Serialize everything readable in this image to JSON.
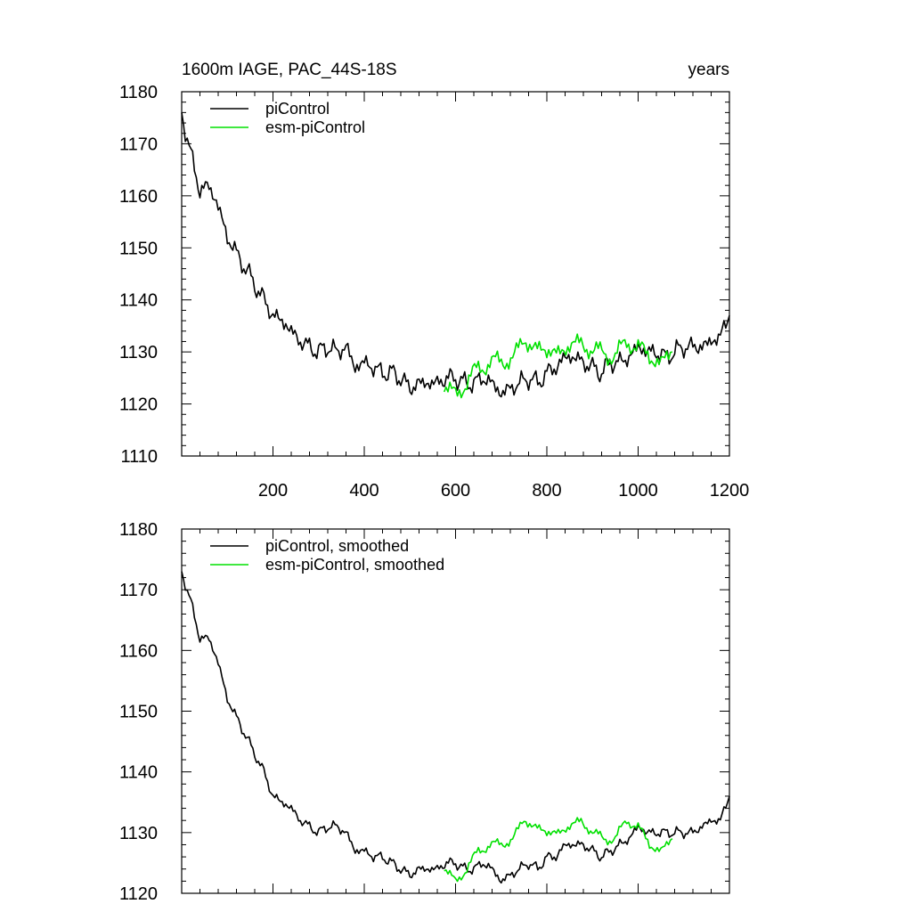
{
  "chart_data": [
    {
      "type": "line",
      "title": "1600m IAGE, PAC_44S-18S",
      "title_right": "years",
      "xlim": [
        0,
        1200
      ],
      "ylim": [
        1110,
        1180
      ],
      "x_ticks": [
        200,
        400,
        600,
        800,
        1000,
        1200
      ],
      "x_tick_labels": [
        "200",
        "400",
        "600",
        "800",
        "1000",
        "1200"
      ],
      "y_ticks": [
        1110,
        1120,
        1130,
        1140,
        1150,
        1160,
        1170,
        1180
      ],
      "y_tick_labels": [
        "1110",
        "1120",
        "1130",
        "1140",
        "1150",
        "1160",
        "1170",
        "1180"
      ],
      "legend": [
        "piControl",
        "esm-piControl"
      ],
      "series": [
        {
          "name": "piControl",
          "color": "#000000",
          "x": [
            0,
            20,
            40,
            60,
            80,
            100,
            120,
            140,
            160,
            180,
            200,
            220,
            240,
            260,
            280,
            300,
            320,
            340,
            360,
            380,
            400,
            420,
            440,
            460,
            480,
            500,
            520,
            540,
            560,
            580,
            600,
            620,
            640,
            660,
            680,
            700,
            720,
            740,
            760,
            780,
            800,
            820,
            840,
            860,
            880,
            900,
            920,
            940,
            960,
            980,
            1000,
            1020,
            1040,
            1060,
            1080,
            1100,
            1120,
            1140,
            1160,
            1180,
            1200
          ],
          "values": [
            1176,
            1168,
            1161,
            1162,
            1158,
            1152,
            1149,
            1146,
            1143,
            1140,
            1137,
            1136,
            1134,
            1132,
            1131,
            1130,
            1131,
            1130,
            1131,
            1127,
            1128,
            1127,
            1126,
            1126,
            1125,
            1123,
            1124,
            1124,
            1124,
            1125,
            1125,
            1124,
            1124,
            1125,
            1124,
            1122,
            1123,
            1124,
            1125,
            1124,
            1126,
            1127,
            1129,
            1129,
            1128,
            1127,
            1126,
            1128,
            1128,
            1129,
            1131,
            1130,
            1130,
            1129,
            1130,
            1131,
            1131,
            1131,
            1132,
            1133,
            1137
          ]
        },
        {
          "name": "esm-piControl",
          "color": "#00e000",
          "x": [
            575,
            600,
            625,
            650,
            675,
            700,
            725,
            750,
            775,
            800,
            825,
            850,
            875,
            900,
            925,
            950,
            975,
            1000,
            1025,
            1050,
            1075
          ],
          "values": [
            1123,
            1122,
            1124,
            1127,
            1128,
            1128,
            1129,
            1132,
            1131,
            1130,
            1130,
            1131,
            1132,
            1130,
            1130,
            1129,
            1132,
            1131,
            1129,
            1128,
            1130
          ]
        }
      ]
    },
    {
      "type": "line",
      "title": "",
      "xlim": [
        0,
        1200
      ],
      "ylim": [
        1120,
        1180
      ],
      "x_ticks": [
        200,
        400,
        600,
        800,
        1000,
        1200
      ],
      "y_ticks": [
        1120,
        1130,
        1140,
        1150,
        1160,
        1170,
        1180
      ],
      "y_tick_labels": [
        "1120",
        "1130",
        "1140",
        "1150",
        "1160",
        "1170",
        "1180"
      ],
      "legend": [
        "piControl, smoothed",
        "esm-piControl, smoothed"
      ],
      "series": [
        {
          "name": "piControl, smoothed",
          "color": "#000000",
          "x": [
            0,
            20,
            40,
            60,
            80,
            100,
            120,
            140,
            160,
            180,
            200,
            220,
            240,
            260,
            280,
            300,
            320,
            340,
            360,
            380,
            400,
            420,
            440,
            460,
            480,
            500,
            520,
            540,
            560,
            580,
            600,
            620,
            640,
            660,
            680,
            700,
            720,
            740,
            760,
            780,
            800,
            820,
            840,
            860,
            880,
            900,
            920,
            940,
            960,
            980,
            1000,
            1020,
            1040,
            1060,
            1080,
            1100,
            1120,
            1140,
            1160,
            1180,
            1200
          ],
          "values": [
            1173,
            1168,
            1162,
            1162,
            1158,
            1152,
            1149,
            1146,
            1143,
            1140,
            1136,
            1135,
            1134,
            1132,
            1131,
            1130,
            1131,
            1131,
            1130,
            1127,
            1127,
            1126,
            1126,
            1125,
            1124,
            1123,
            1124,
            1124,
            1124,
            1125,
            1125,
            1124,
            1124,
            1125,
            1124,
            1122,
            1123,
            1124,
            1125,
            1124,
            1126,
            1126,
            1128,
            1128,
            1128,
            1127,
            1126,
            1127,
            1128,
            1129,
            1131,
            1130,
            1130,
            1130,
            1130,
            1130,
            1130,
            1131,
            1132,
            1132,
            1136
          ]
        },
        {
          "name": "esm-piControl, smoothed",
          "color": "#00e000",
          "x": [
            575,
            600,
            625,
            650,
            675,
            700,
            725,
            750,
            775,
            800,
            825,
            850,
            875,
            900,
            925,
            950,
            975,
            1000,
            1025,
            1050,
            1075
          ],
          "values": [
            1124,
            1122,
            1124,
            1127,
            1128,
            1128,
            1129,
            1132,
            1131,
            1130,
            1130,
            1131,
            1132,
            1130,
            1129,
            1129,
            1132,
            1131,
            1128,
            1127,
            1129
          ]
        }
      ]
    }
  ]
}
